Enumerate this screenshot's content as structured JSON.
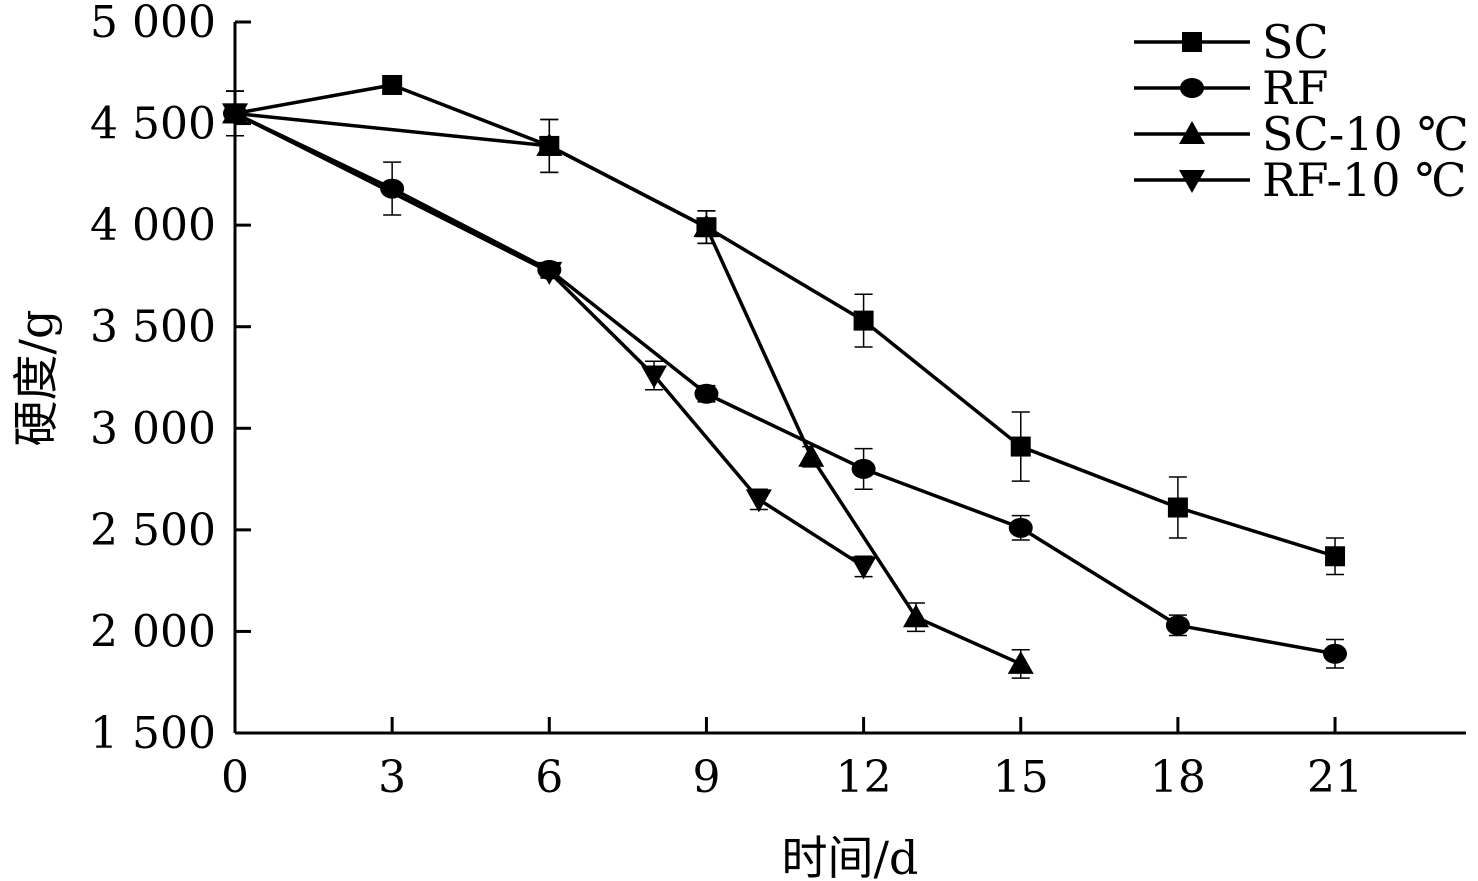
{
  "chart_data": {
    "type": "line",
    "xlabel": "时间/d",
    "ylabel": "硬度/g",
    "xlim": [
      0,
      23.5
    ],
    "ylim": [
      1500,
      5000
    ],
    "x_ticks": [
      0,
      3,
      6,
      9,
      12,
      15,
      18,
      21
    ],
    "x_tick_labels": [
      "0",
      "3",
      "6",
      "9",
      "12",
      "15",
      "18",
      "21"
    ],
    "y_ticks": [
      1500,
      2000,
      2500,
      3000,
      3500,
      4000,
      4500,
      5000
    ],
    "y_tick_labels": [
      "1 500",
      "2 000",
      "2 500",
      "3 000",
      "3 500",
      "4 000",
      "4 500",
      "5 000"
    ],
    "legend_position": "top-right",
    "grid": false,
    "series": [
      {
        "name": "SC",
        "marker": "square",
        "x": [
          0,
          3,
          6,
          9,
          12,
          15,
          18,
          21
        ],
        "y": [
          4550,
          4690,
          4390,
          3990,
          3530,
          2910,
          2610,
          2370
        ],
        "err": [
          110,
          40,
          130,
          80,
          130,
          170,
          150,
          90
        ]
      },
      {
        "name": "RF",
        "marker": "circle",
        "x": [
          0,
          3,
          6,
          9,
          12,
          15,
          18,
          21
        ],
        "y": [
          4550,
          4180,
          3780,
          3170,
          2800,
          2510,
          2030,
          1890
        ],
        "err": [
          110,
          130,
          30,
          40,
          100,
          60,
          50,
          70
        ]
      },
      {
        "name": "SC-10 ℃",
        "marker": "triangle-up",
        "x": [
          0,
          6,
          9,
          11,
          13,
          15
        ],
        "y": [
          4550,
          4390,
          3990,
          2860,
          2070,
          1840
        ],
        "err": [
          110,
          130,
          80,
          50,
          70,
          70
        ]
      },
      {
        "name": "RF-10 ℃",
        "marker": "triangle-down",
        "x": [
          0,
          6,
          8,
          10,
          12
        ],
        "y": [
          4550,
          3770,
          3260,
          2650,
          2320
        ],
        "err": [
          110,
          30,
          70,
          50,
          50
        ]
      }
    ]
  }
}
